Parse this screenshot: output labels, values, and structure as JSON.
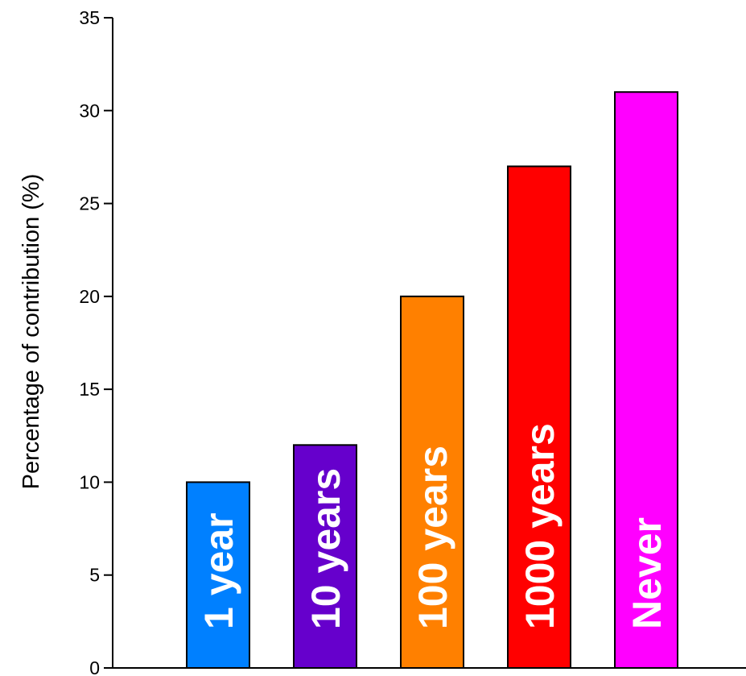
{
  "chart_data": {
    "type": "bar",
    "title": "",
    "xlabel": "",
    "ylabel": "Percentage of contribution (%)",
    "ylim": [
      0,
      35
    ],
    "yticks": [
      0,
      5,
      10,
      15,
      20,
      25,
      30,
      35
    ],
    "grid": false,
    "legend": "none",
    "categories": [
      "1 year",
      "10 years",
      "100 years",
      "1000 years",
      "Never"
    ],
    "values": [
      10,
      12,
      20,
      27,
      31
    ],
    "colors": [
      "#0080ff",
      "#6600cc",
      "#ff8000",
      "#ff0000",
      "#ff00ff"
    ]
  }
}
